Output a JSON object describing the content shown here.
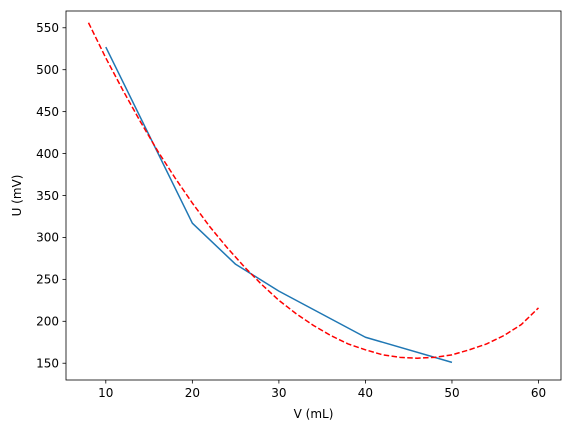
{
  "chart_data": {
    "type": "line",
    "title": "",
    "xlabel": "V (mL)",
    "ylabel": "U (mV)",
    "xlim": [
      5.4,
      62.6
    ],
    "ylim": [
      130,
      570
    ],
    "x_ticks": [
      10,
      20,
      30,
      40,
      50,
      60
    ],
    "y_ticks": [
      150,
      200,
      250,
      300,
      350,
      400,
      450,
      500,
      550
    ],
    "grid": false,
    "legend": "none",
    "series": [
      {
        "style": "solid",
        "color": "#1f77b4",
        "x": [
          10,
          20,
          25,
          30,
          40,
          50
        ],
        "y": [
          527,
          317,
          268,
          236,
          181,
          151
        ]
      },
      {
        "style": "dashed",
        "color": "#ff0000",
        "x": [
          8,
          10,
          12,
          14,
          16,
          18,
          20,
          22,
          24,
          26,
          28,
          30,
          32,
          34,
          36,
          38,
          40,
          42,
          44,
          46,
          48,
          50,
          52,
          54,
          56,
          58,
          60
        ],
        "y": [
          556,
          514,
          475,
          438,
          403,
          371,
          341,
          313,
          288,
          265,
          244,
          225,
          209,
          195,
          183,
          173,
          166,
          160,
          157,
          156,
          157,
          160,
          166,
          173,
          183,
          196,
          216
        ]
      }
    ]
  }
}
